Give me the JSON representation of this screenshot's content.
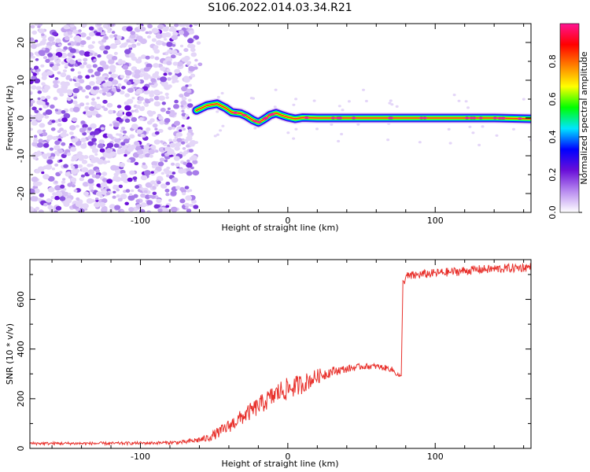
{
  "title": "S106.2022.014.03.34.R21",
  "chart_data": [
    {
      "type": "heatmap",
      "xlabel": "Height of straight line (km)",
      "ylabel": "Frequency (Hz)",
      "xlim": [
        -175,
        165
      ],
      "ylim": [
        -25,
        25
      ],
      "xticks": [
        -100,
        0,
        100
      ],
      "xtick_labels": [
        "-100",
        "0",
        "100"
      ],
      "yticks": [
        -20,
        -10,
        0,
        10,
        20
      ],
      "ytick_labels": [
        "-20",
        "-10",
        "0",
        "10",
        "20"
      ],
      "noise_region_x": [
        -175,
        -62
      ],
      "signal_start_x": -62,
      "signal_line": {
        "x": [
          -62,
          -55,
          -48,
          -42,
          -38,
          -32,
          -28,
          -24,
          -20,
          -16,
          -12,
          -8,
          -4,
          0,
          5,
          10,
          20,
          40,
          60,
          80,
          100,
          120,
          140,
          165
        ],
        "y": [
          2.0,
          3.3,
          3.8,
          2.6,
          1.5,
          1.2,
          0.5,
          -0.5,
          -1.2,
          -0.3,
          0.8,
          1.3,
          0.7,
          0.2,
          -0.2,
          0.1,
          0.0,
          0.0,
          0.0,
          0.0,
          0.0,
          0.0,
          0.0,
          -0.2
        ]
      },
      "grid": false,
      "colorbar": {
        "label": "Normalized spectral amplitude",
        "range": [
          0,
          1
        ],
        "ticks": [
          0.0,
          0.2,
          0.4,
          0.6,
          0.8
        ],
        "tick_labels": [
          "0.0",
          "0.2",
          "0.4",
          "0.6",
          "0.8"
        ],
        "colors": [
          "#ffffff",
          "#b98cf0",
          "#6a0fd8",
          "#0000ff",
          "#00e5ff",
          "#00ff00",
          "#ffff00",
          "#ff8000",
          "#ff0000",
          "#ff1493"
        ]
      }
    },
    {
      "type": "line",
      "xlabel": "Height of straight line (km)",
      "ylabel": "SNR (10 * v/v)",
      "xlim": [
        -175,
        165
      ],
      "ylim": [
        0,
        760
      ],
      "xticks": [
        -100,
        0,
        100
      ],
      "xtick_labels": [
        "-100",
        "0",
        "100"
      ],
      "yticks": [
        0,
        200,
        400,
        600
      ],
      "ytick_labels": [
        "0",
        "200",
        "400",
        "600"
      ],
      "grid": false,
      "series": [
        {
          "color": "#e8302b",
          "x": [
            -175,
            -150,
            -120,
            -90,
            -70,
            -55,
            -45,
            -35,
            -25,
            -15,
            -5,
            0,
            10,
            20,
            30,
            40,
            50,
            60,
            70,
            77,
            78,
            80,
            90,
            100,
            110,
            120,
            130,
            140,
            150,
            165
          ],
          "y": [
            20,
            20,
            20,
            22,
            25,
            40,
            70,
            110,
            150,
            190,
            230,
            240,
            260,
            290,
            310,
            320,
            330,
            330,
            320,
            285,
            660,
            690,
            700,
            705,
            710,
            715,
            720,
            722,
            725,
            730
          ],
          "noise": [
            6,
            6,
            6,
            6,
            8,
            15,
            25,
            30,
            35,
            40,
            45,
            45,
            40,
            30,
            20,
            15,
            12,
            12,
            12,
            10,
            20,
            20,
            18,
            18,
            18,
            18,
            18,
            18,
            18,
            18
          ]
        }
      ]
    }
  ]
}
